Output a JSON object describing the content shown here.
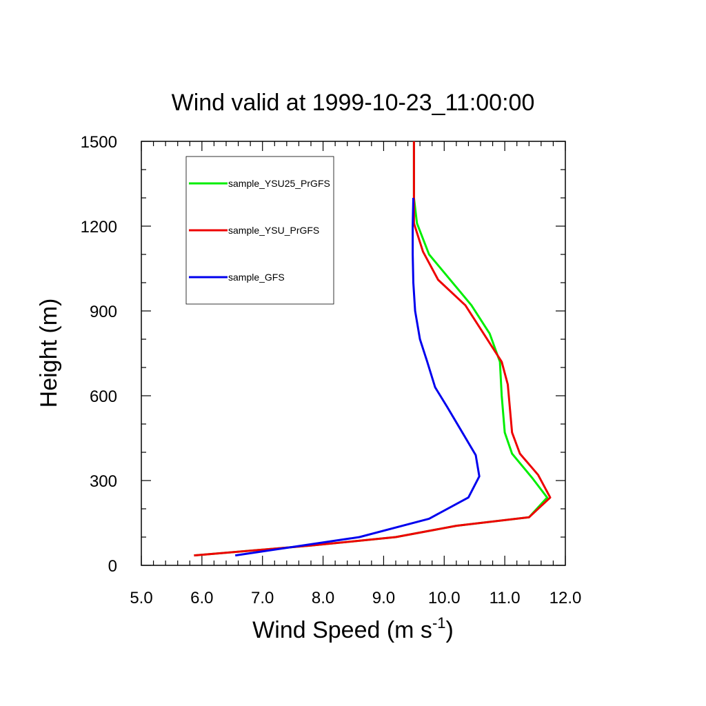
{
  "chart_data": {
    "type": "line",
    "title": "Wind valid at 1999-10-23_11:00:00",
    "xlabel": "Wind Speed (m s",
    "xlabel_sup": "-1",
    "xlabel_end": ")",
    "ylabel": "Height (m)",
    "xlim": [
      5.0,
      12.0
    ],
    "ylim": [
      0,
      1500
    ],
    "x_ticks": [
      "5.0",
      "6.0",
      "7.0",
      "8.0",
      "9.0",
      "10.0",
      "11.0",
      "12.0"
    ],
    "y_ticks": [
      "0",
      "300",
      "600",
      "900",
      "1200",
      "1500"
    ],
    "grid": false,
    "legend_position": "top-left",
    "series": [
      {
        "name": "sample_YSU25_PrGFS",
        "color": "#00ee00",
        "x": [
          5.87,
          7.8,
          9.2,
          10.2,
          11.4,
          11.7,
          11.45,
          11.12,
          11.0,
          10.95,
          10.92,
          10.75,
          10.45,
          10.1,
          9.75,
          9.55,
          9.5,
          9.5,
          9.5
        ],
        "y": [
          35,
          70,
          100,
          140,
          170,
          240,
          310,
          395,
          470,
          600,
          720,
          820,
          920,
          1010,
          1100,
          1210,
          1300,
          1400,
          1500
        ]
      },
      {
        "name": "sample_YSU_PrGFS",
        "color": "#ee0000",
        "x": [
          5.87,
          7.8,
          9.2,
          10.2,
          11.4,
          11.75,
          11.55,
          11.25,
          11.12,
          11.05,
          10.95,
          10.65,
          10.35,
          9.9,
          9.65,
          9.5,
          9.5,
          9.5,
          9.5
        ],
        "y": [
          35,
          70,
          100,
          140,
          170,
          240,
          320,
          395,
          470,
          640,
          720,
          820,
          920,
          1010,
          1110,
          1210,
          1300,
          1400,
          1500
        ]
      },
      {
        "name": "sample_GFS",
        "color": "#0000ee",
        "x": [
          6.55,
          8.6,
          9.75,
          10.4,
          10.58,
          10.52,
          10.3,
          10.05,
          9.85,
          9.72,
          9.6,
          9.52,
          9.49,
          9.48,
          9.48,
          9.49
        ],
        "y": [
          35,
          100,
          165,
          240,
          315,
          390,
          470,
          560,
          630,
          720,
          800,
          900,
          1000,
          1100,
          1200,
          1300
        ]
      }
    ]
  }
}
